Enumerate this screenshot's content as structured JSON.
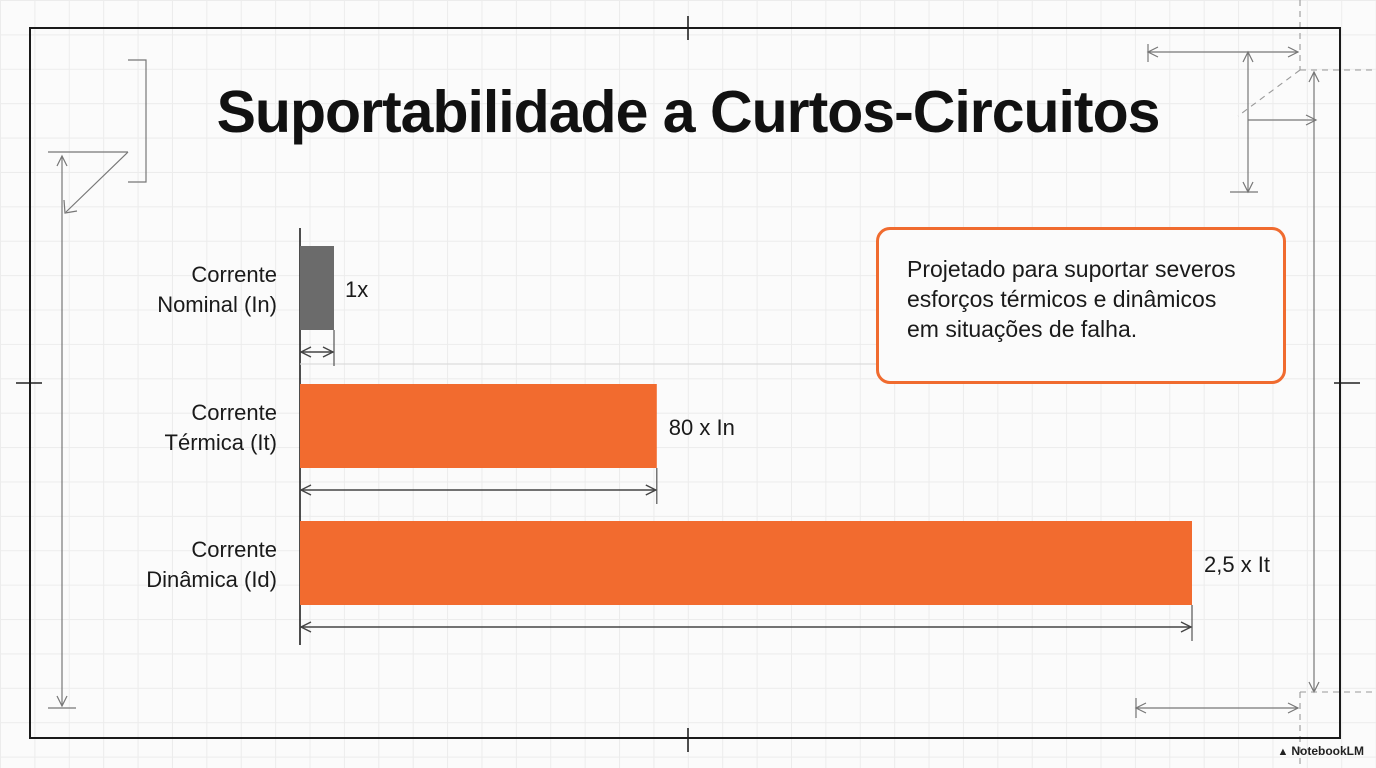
{
  "title": "Suportabilidade a Curtos-Circuitos",
  "callout": {
    "text": "Projetado para suportar severos esforços térmicos e dinâmicos em situações de falha."
  },
  "watermark": {
    "icon": "notebooklm-logo-icon",
    "text": "NotebookLM"
  },
  "colors": {
    "accent": "#f26b2f",
    "nominal_bar": "#6b6b6b",
    "frame": "#1a1a1a"
  },
  "chart_data": {
    "type": "bar",
    "orientation": "horizontal",
    "title": "Suportabilidade a Curtos-Circuitos",
    "categories": [
      {
        "line1": "Corrente",
        "line2": "Nominal (In)"
      },
      {
        "line1": "Corrente",
        "line2": "Térmica (It)"
      },
      {
        "line1": "Corrente",
        "line2": "Dinâmica (Id)"
      }
    ],
    "values": [
      1,
      80,
      200
    ],
    "value_labels": [
      "1x",
      "80 x In",
      "2,5 x It"
    ],
    "bar_colors": [
      "#6b6b6b",
      "#f26b2f",
      "#f26b2f"
    ],
    "xlim": [
      0,
      200
    ],
    "grid": true,
    "legend": "none"
  }
}
